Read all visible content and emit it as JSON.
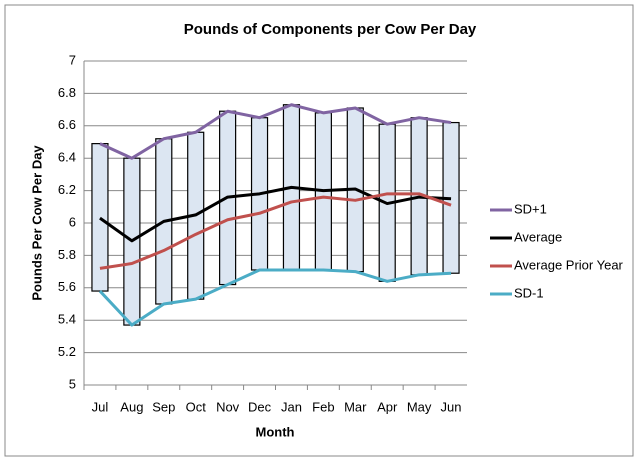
{
  "chart_data": {
    "type": "line",
    "title": "Pounds of Components per Cow Per Day",
    "x_label": "Month",
    "y_label": "Pounds Per Cow Per Day",
    "categories": [
      "Jul",
      "Aug",
      "Sep",
      "Oct",
      "Nov",
      "Dec",
      "Jan",
      "Feb",
      "Mar",
      "Apr",
      "May",
      "Jun"
    ],
    "series": [
      {
        "name": "SD+1",
        "color": "#8064a2",
        "values": [
          6.49,
          6.4,
          6.52,
          6.56,
          6.69,
          6.65,
          6.73,
          6.68,
          6.71,
          6.61,
          6.65,
          6.62
        ]
      },
      {
        "name": "Average",
        "color": "#000000",
        "values": [
          6.03,
          5.89,
          6.01,
          6.05,
          6.16,
          6.18,
          6.22,
          6.2,
          6.21,
          6.12,
          6.16,
          6.15
        ]
      },
      {
        "name": "Average Prior Year",
        "color": "#c0504d",
        "values": [
          5.72,
          5.75,
          5.83,
          5.93,
          6.02,
          6.06,
          6.13,
          6.16,
          6.14,
          6.18,
          6.18,
          6.11
        ]
      },
      {
        "name": "SD-1",
        "color": "#4bacc6",
        "values": [
          5.58,
          5.37,
          5.5,
          5.53,
          5.62,
          5.71,
          5.71,
          5.71,
          5.7,
          5.64,
          5.68,
          5.69
        ]
      }
    ],
    "range_bars": true,
    "range_bar_color": "#dce6f2",
    "ylim": [
      5,
      7
    ],
    "yticks": [
      5,
      5.2,
      5.4,
      5.6,
      5.8,
      6,
      6.2,
      6.4,
      6.6,
      6.8,
      7
    ],
    "grid": true,
    "legend": "right"
  }
}
